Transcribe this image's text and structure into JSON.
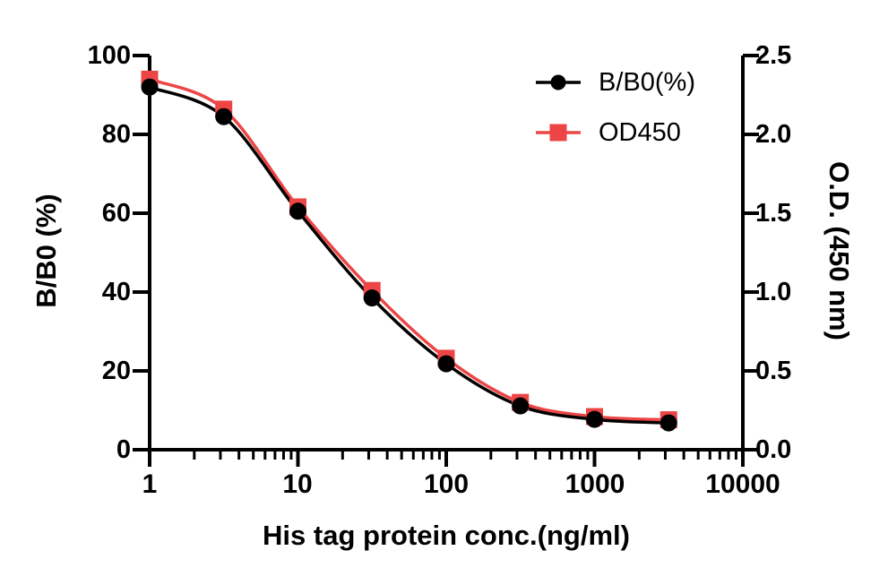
{
  "chart_data": {
    "type": "line",
    "title": "",
    "xlabel": "His tag protein conc.(ng/ml)",
    "xscale": "log",
    "xlim": [
      1,
      10000
    ],
    "x_ticks": [
      "1",
      "10",
      "100",
      "1000",
      "10000"
    ],
    "grid": false,
    "x": [
      1,
      3.16,
      10,
      31.6,
      100,
      316,
      1000,
      3162
    ],
    "series": [
      {
        "name": "B/B0(%)",
        "axis": "left",
        "color": "#000000",
        "marker": "circle",
        "values": [
          92,
          84.5,
          60.5,
          38.5,
          21.8,
          11.1,
          7.7,
          6.8
        ]
      },
      {
        "name": "OD450",
        "axis": "right",
        "color": "#ED4545",
        "marker": "square",
        "values": [
          2.35,
          2.16,
          1.54,
          1.01,
          0.58,
          0.3,
          0.21,
          0.19
        ]
      }
    ],
    "left_axis": {
      "label": "B/B0 (%)",
      "lim": [
        0,
        100
      ],
      "ticks": [
        "0",
        "20",
        "40",
        "60",
        "80",
        "100"
      ]
    },
    "right_axis": {
      "label": "O.D. (450 nm)",
      "lim": [
        0,
        2.5
      ],
      "ticks": [
        "0.0",
        "0.5",
        "1.0",
        "1.5",
        "2.0",
        "2.5"
      ]
    },
    "legend": {
      "position": "top-right",
      "entries": [
        {
          "label": "B/B0(%)",
          "color": "#000000",
          "marker": "circle"
        },
        {
          "label": "OD450",
          "color": "#ED4545",
          "marker": "square"
        }
      ]
    }
  },
  "colors": {
    "background": "#FFFFFF",
    "text": "#000000",
    "series_bb0": "#000000",
    "series_od450": "#ED4545"
  }
}
